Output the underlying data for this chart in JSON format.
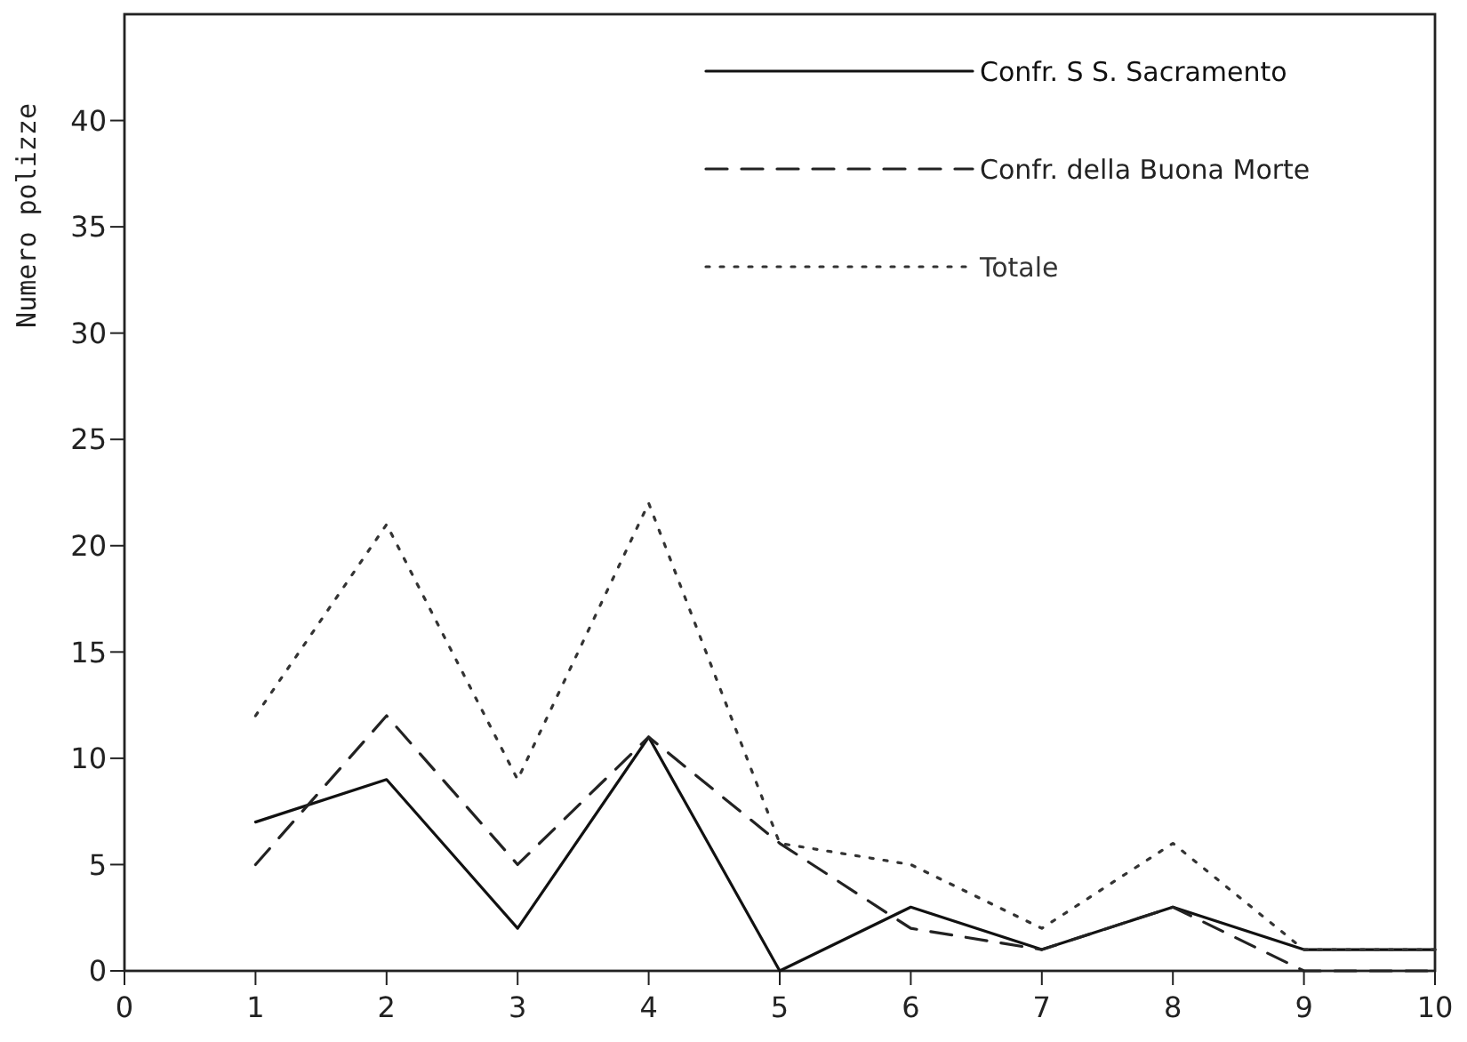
{
  "chart_data": {
    "type": "line",
    "ylabel": "Numero polizze",
    "x": [
      1,
      2,
      3,
      4,
      5,
      6,
      7,
      8,
      9,
      10
    ],
    "xlim": [
      0,
      10
    ],
    "xticks": [
      0,
      1,
      2,
      3,
      4,
      5,
      6,
      7,
      8,
      9,
      10
    ],
    "ylim": [
      0,
      45
    ],
    "yticks": [
      0,
      5,
      10,
      15,
      20,
      25,
      30,
      35,
      40
    ],
    "grid": false,
    "legend": "top right",
    "marker": "none",
    "series": [
      {
        "name": "Confr. S S. Sacramento",
        "color": "#111111",
        "line_style": "solid",
        "values": [
          7,
          9,
          2,
          11,
          0,
          3,
          1,
          3,
          1,
          1
        ]
      },
      {
        "name": "Confr. della Buona Morte",
        "color": "#222222",
        "line_style": "dashed",
        "values": [
          5,
          12,
          5,
          11,
          6,
          2,
          1,
          3,
          0,
          0
        ]
      },
      {
        "name": "Totale",
        "color": "#333333",
        "line_style": "dotted",
        "values": [
          12,
          21,
          9,
          22,
          6,
          5,
          2,
          6,
          1,
          1
        ]
      }
    ]
  }
}
